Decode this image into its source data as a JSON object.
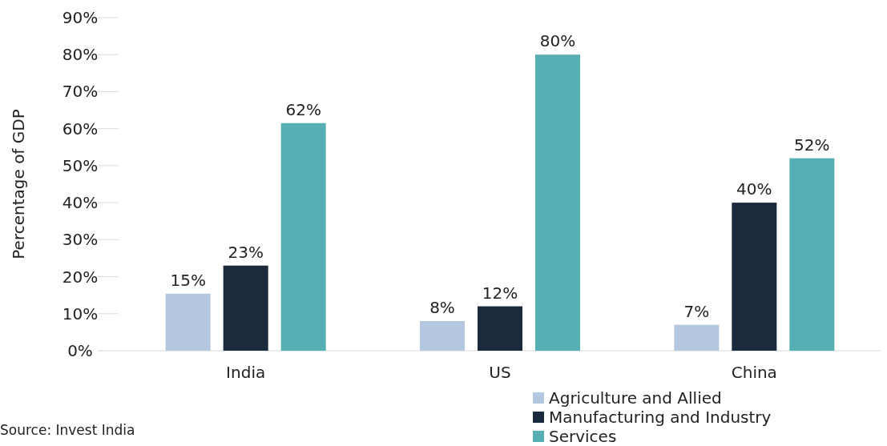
{
  "chart_data": {
    "type": "bar",
    "ylabel": "Percentage of GDP",
    "categories": [
      "India",
      "US",
      "China"
    ],
    "series": [
      {
        "name": "Agriculture and Allied",
        "color": "#b4c7e0",
        "values": [
          15.4,
          8,
          7
        ],
        "value_labels": [
          "15%",
          "8%",
          "7%"
        ]
      },
      {
        "name": "Manufacturing and Industry",
        "color": "#1b2a3d",
        "values": [
          23,
          12,
          40
        ],
        "value_labels": [
          "23%",
          "12%",
          "40%"
        ]
      },
      {
        "name": "Services",
        "color": "#55afb5",
        "values": [
          61.5,
          80,
          52
        ],
        "value_labels": [
          "62%",
          "80%",
          "52%"
        ]
      }
    ],
    "ylim": [
      0,
      90
    ],
    "yticks": [
      {
        "value": 0,
        "label": "0%"
      },
      {
        "value": 10,
        "label": "10%"
      },
      {
        "value": 20,
        "label": "20%"
      },
      {
        "value": 30,
        "label": "30%"
      },
      {
        "value": 40,
        "label": "40%"
      },
      {
        "value": 50,
        "label": "50%"
      },
      {
        "value": 60,
        "label": "60%"
      },
      {
        "value": 70,
        "label": "70%"
      },
      {
        "value": 80,
        "label": "80%"
      },
      {
        "value": 90,
        "label": "90%"
      }
    ],
    "grid": false,
    "legend": "bottom right",
    "annotations": [
      "Source: Invest India"
    ]
  }
}
